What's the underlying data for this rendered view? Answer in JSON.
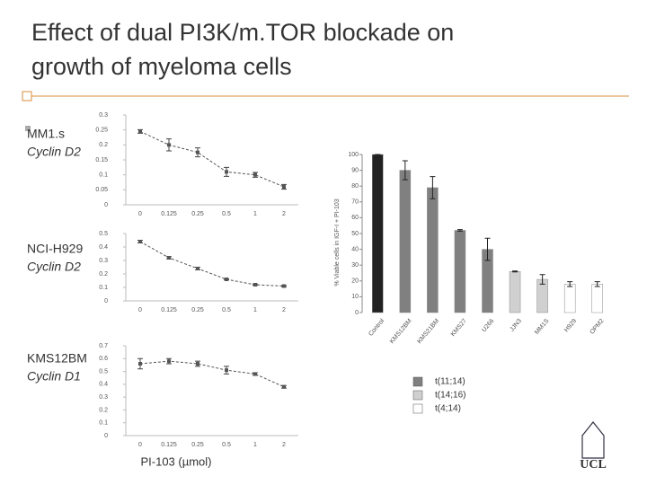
{
  "slide": {
    "title_lines": [
      "Effect of dual PI3K/m.TOR blockade on",
      "growth of myeloma cells"
    ],
    "logo": "UCL"
  },
  "chart_data": [
    {
      "type": "line",
      "title": "MM1.s",
      "subtitle": "Cyclin D2",
      "categories": [
        "0",
        "0.125",
        "0.25",
        "0.5",
        "1",
        "2"
      ],
      "values": [
        0.245,
        0.2,
        0.175,
        0.11,
        0.1,
        0.06
      ],
      "errors": [
        0.006,
        0.02,
        0.015,
        0.015,
        0.008,
        0.008
      ],
      "ylim": [
        0,
        0.3
      ],
      "yticks": [
        0,
        0.05,
        0.1,
        0.15,
        0.2,
        0.25,
        0.3
      ],
      "color": "#555555"
    },
    {
      "type": "line",
      "title": "NCI-H929",
      "subtitle": "Cyclin D2",
      "categories": [
        "0",
        "0.125",
        "0.25",
        "0.5",
        "1",
        "2"
      ],
      "values": [
        0.44,
        0.32,
        0.24,
        0.16,
        0.12,
        0.11
      ],
      "errors": [
        0.01,
        0.008,
        0.01,
        0.005,
        0.005,
        0.005
      ],
      "ylim": [
        0,
        0.5
      ],
      "yticks": [
        0,
        0.1,
        0.2,
        0.3,
        0.4,
        0.5
      ],
      "color": "#555555"
    },
    {
      "type": "line",
      "title": "KMS12BM",
      "subtitle": "Cyclin D1",
      "x_label": "PI-103 (µmol)",
      "categories": [
        "0",
        "0.125",
        "0.25",
        "0.5",
        "1",
        "2"
      ],
      "values": [
        0.56,
        0.58,
        0.56,
        0.51,
        0.48,
        0.38
      ],
      "errors": [
        0.04,
        0.02,
        0.02,
        0.03,
        0.01,
        0.01
      ],
      "ylim": [
        0,
        0.7
      ],
      "yticks": [
        0,
        0.1,
        0.2,
        0.3,
        0.4,
        0.5,
        0.6,
        0.7
      ],
      "color": "#555555"
    },
    {
      "type": "bar",
      "y_label": "% Viable cells in IGF-I + PI-103",
      "categories": [
        "Control",
        "KMS12BM",
        "KMS21BM",
        "KMS27",
        "U266",
        "JJN3",
        "MM1S",
        "H929",
        "OPM2"
      ],
      "values": [
        100,
        90,
        79,
        52,
        40,
        26,
        21,
        18,
        18
      ],
      "errors": [
        0,
        6,
        7,
        0.5,
        7,
        0.3,
        3,
        1.5,
        1.5
      ],
      "colors": [
        "#222222",
        "#808080",
        "#808080",
        "#808080",
        "#808080",
        "#d0d0d0",
        "#d0d0d0",
        "#ffffff",
        "#ffffff"
      ],
      "legend": [
        {
          "name": "t(11;14)",
          "color": "#808080"
        },
        {
          "name": "t(14;16)",
          "color": "#d0d0d0"
        },
        {
          "name": "t(4;14)",
          "color": "#ffffff"
        }
      ],
      "ylim": [
        0,
        100
      ],
      "yticks": [
        0,
        10,
        20,
        30,
        40,
        50,
        60,
        70,
        80,
        90,
        100
      ]
    }
  ]
}
